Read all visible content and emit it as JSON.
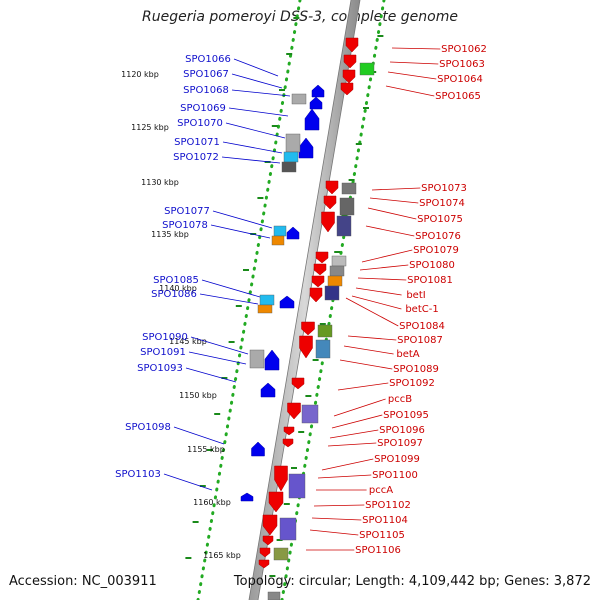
{
  "title": "Ruegeria pomeroyi DSS-3, complete genome",
  "accession": "Accession: NC_003911",
  "topology": "Topology: circular; Length: 4,109,442 bp; Genes: 3,872",
  "colors": {
    "forward_strand": "#ee0000",
    "reverse_strand": "#0000ee",
    "left_labels": "#1010cc",
    "right_labels": "#cc0000",
    "scale_dots": "#22aa22"
  },
  "scale_ticks": [
    "1120 kbp",
    "1125 kbp",
    "1130 kbp",
    "1135 kbp",
    "1140 kbp",
    "1145 kbp",
    "1150 kbp",
    "1155 kbp",
    "1160 kbp",
    "1165 kbp"
  ],
  "left_genes": [
    "SPO1066",
    "SPO1067",
    "SPO1068",
    "SPO1069",
    "SPO1070",
    "SPO1071",
    "SPO1072",
    "SPO1077",
    "SPO1078",
    "SPO1085",
    "SPO1086",
    "SPO1090",
    "SPO1091",
    "SPO1093",
    "SPO1098",
    "SPO1103"
  ],
  "right_genes": [
    "SPO1062",
    "SPO1063",
    "SPO1064",
    "SPO1065",
    "SPO1073",
    "SPO1074",
    "SPO1075",
    "SPO1076",
    "SPO1079",
    "SPO1080",
    "SPO1081",
    "betI",
    "betC-1",
    "SPO1084",
    "SPO1087",
    "betA",
    "SPO1089",
    "SPO1092",
    "pccB",
    "SPO1095",
    "SPO1096",
    "SPO1097",
    "SPO1099",
    "SPO1100",
    "pccA",
    "SPO1102",
    "SPO1104",
    "SPO1105",
    "SPO1106"
  ]
}
